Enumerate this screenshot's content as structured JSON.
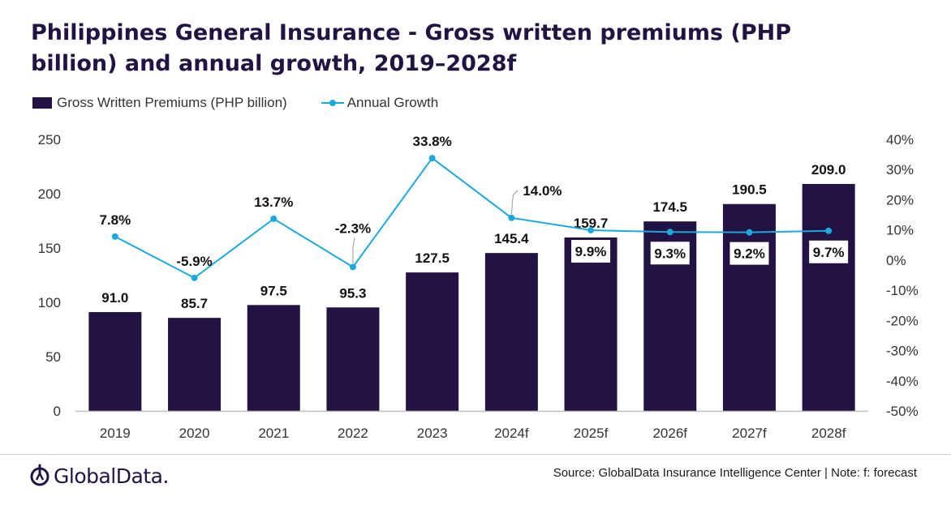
{
  "title": "Philippines General Insurance - Gross written premiums (PHP billion) and annual growth, 2019–2028f",
  "footer": {
    "brand": "GlobalData.",
    "source": "Source: GlobalData Insurance Intelligence Center | Note: f: forecast"
  },
  "colors": {
    "bar": "#231244",
    "line": "#1aa9de",
    "axis": "#bfbfbf"
  },
  "chart_data": {
    "type": "bar+line",
    "categories": [
      "2019",
      "2020",
      "2021",
      "2022",
      "2023",
      "2024f",
      "2025f",
      "2026f",
      "2027f",
      "2028f"
    ],
    "series": [
      {
        "name": "Gross Written Premiums (PHP billion)",
        "type": "bar",
        "axis": "left",
        "values": [
          91.0,
          85.7,
          97.5,
          95.3,
          127.5,
          145.4,
          159.7,
          174.5,
          190.5,
          209.0
        ],
        "labels": [
          "91.0",
          "85.7",
          "97.5",
          "95.3",
          "127.5",
          "145.4",
          "159.7",
          "174.5",
          "190.5",
          "209.0"
        ]
      },
      {
        "name": "Annual Growth",
        "type": "line",
        "axis": "right",
        "values": [
          7.8,
          -5.9,
          13.7,
          -2.3,
          33.8,
          14.0,
          9.9,
          9.3,
          9.2,
          9.7
        ],
        "labels": [
          "7.8%",
          "-5.9%",
          "13.7%",
          "-2.3%",
          "33.8%",
          "14.0%",
          "9.9%",
          "9.3%",
          "9.2%",
          "9.7%"
        ]
      }
    ],
    "y_left": {
      "ylim": [
        0,
        250
      ],
      "ticks": [
        "0",
        "50",
        "100",
        "150",
        "200",
        "250"
      ]
    },
    "y_right": {
      "ylim": [
        -50,
        40
      ],
      "ticks": [
        "-50%",
        "-40%",
        "-30%",
        "-20%",
        "-10%",
        "0%",
        "10%",
        "20%",
        "30%",
        "40%"
      ]
    },
    "legend_position": "top-left",
    "grid": false
  }
}
